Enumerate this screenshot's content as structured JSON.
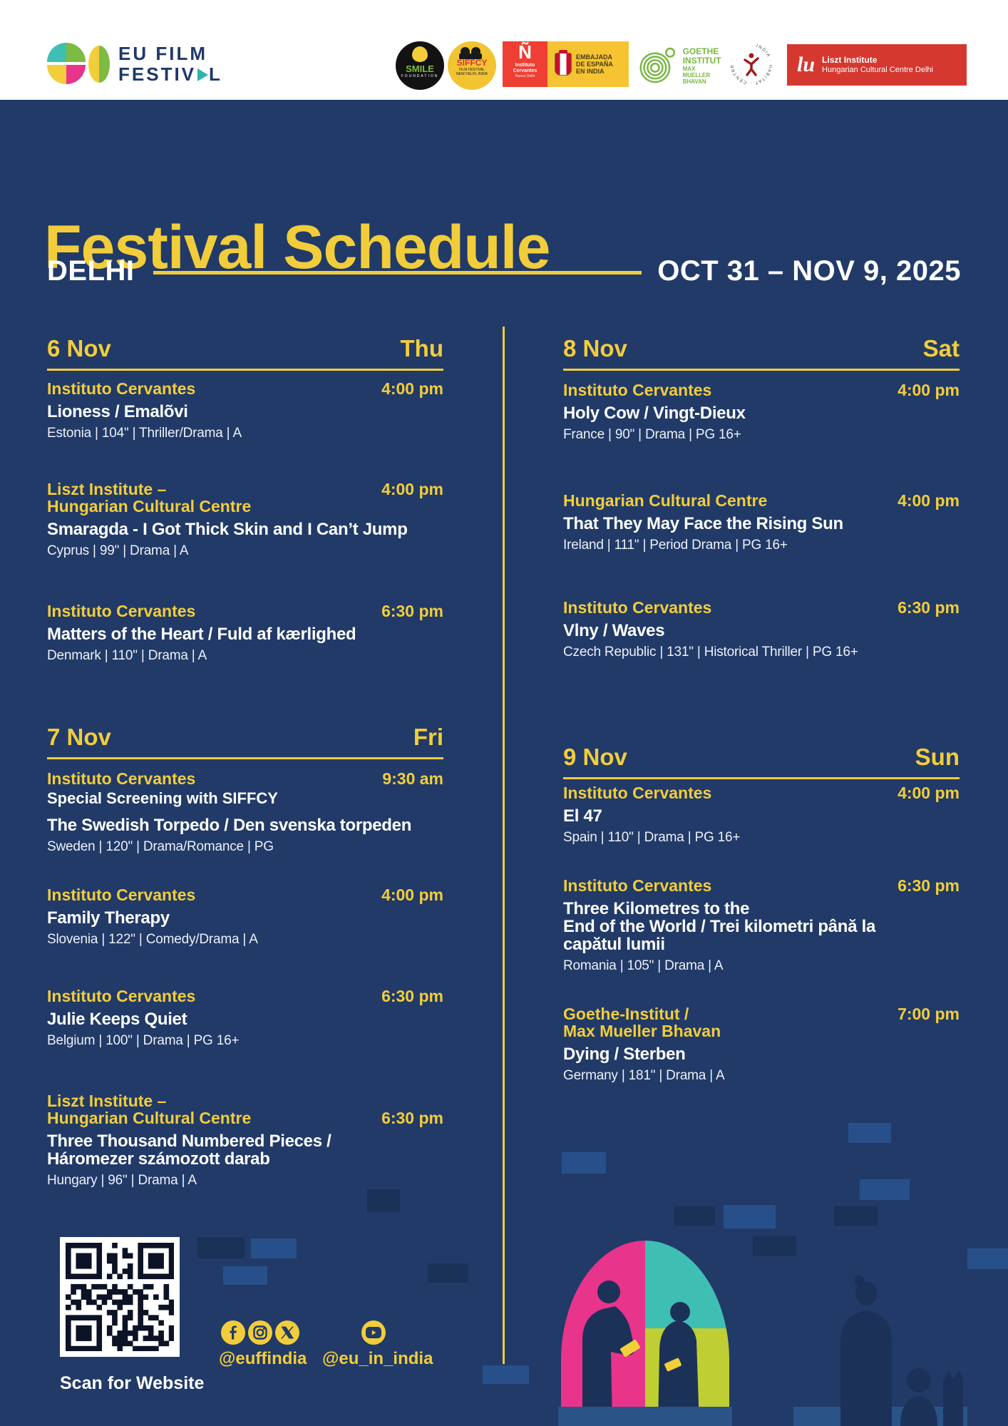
{
  "colors": {
    "background": "#213A68",
    "accent_yellow": "#F2CD3B",
    "white": "#FFFFFF",
    "pink": "#E8348B",
    "teal": "#3FBFB4",
    "lime": "#BFCF33",
    "block_medium": "#27508A",
    "block_dark": "#1A3158",
    "cervantes_red": "#EF3E33",
    "liszt_red": "#D5382F",
    "goethe_green": "#78B843"
  },
  "brand": {
    "line1": "EU FILM",
    "line2_pre": "FESTIV",
    "line2_post": "L"
  },
  "sponsors": {
    "smile": {
      "line1": "SMILE",
      "line2": "FOUNDATION"
    },
    "siffcy": {
      "label": "SIFFCY",
      "sub": "FILM FESTIVAL\nNEW DELHI, INDIA"
    },
    "cervantes": {
      "glyph": "Ñ",
      "line1": "Instituto\nCervantes",
      "line2": "Nueva Delhi"
    },
    "spain": {
      "text": "EMBAJADA\nDE ESPAÑA\nEN INDIA"
    },
    "goethe": {
      "name": "GOETHE\nINSTITUT",
      "sub": "MAX MUELLER\nBHAVAN"
    },
    "habitat": {
      "text": "· INDIA · HABITAT · CENTRE ·"
    },
    "liszt": {
      "glyph": "lu",
      "line1": "Liszt Institute",
      "line2": "Hungarian Cultural Centre Delhi"
    }
  },
  "hero": {
    "title": "Festival Schedule",
    "city": "DELHI",
    "dates": "OCT 31 – NOV 9, 2025"
  },
  "schedule": {
    "left": {
      "sections": [
        {
          "date": "6 Nov",
          "day": "Thu",
          "entries": [
            {
              "venue": "Instituto Cervantes",
              "time": "4:00 pm",
              "title": "Lioness / Emalõvi",
              "meta": "Estonia | 104\" | Thriller/Drama | A"
            },
            {
              "venue": "Liszt Institute –\nHungarian Cultural Centre",
              "time": "4:00 pm",
              "title": "Smaragda - I Got Thick Skin and I Can’t Jump",
              "meta": "Cyprus | 99\" | Drama | A"
            },
            {
              "venue": "Instituto Cervantes",
              "time": "6:30 pm",
              "title": "Matters of the Heart / Fuld af kærlighed",
              "meta": "Denmark | 110\" | Drama | A"
            }
          ]
        },
        {
          "date": "7 Nov",
          "day": "Fri",
          "entries": [
            {
              "venue": "Instituto Cervantes",
              "time": "9:30 am",
              "note": "Special Screening with SIFFCY",
              "title": "The Swedish Torpedo / Den svenska torpeden",
              "meta": "Sweden | 120\" | Drama/Romance | PG"
            },
            {
              "venue": "Instituto Cervantes",
              "time": "4:00 pm",
              "title": "Family Therapy",
              "meta": "Slovenia | 122\" | Comedy/Drama | A"
            },
            {
              "venue": "Instituto Cervantes",
              "time": "6:30 pm",
              "title": "Julie Keeps Quiet",
              "meta": "Belgium | 100\" | Drama | PG 16+"
            },
            {
              "venue": "Liszt Institute –\nHungarian Cultural Centre",
              "time": "6:30 pm",
              "title": "Three Thousand Numbered Pieces /\nHáromezer számozott darab",
              "meta": "Hungary | 96\" | Drama | A"
            }
          ]
        }
      ]
    },
    "right": {
      "sections": [
        {
          "date": "8 Nov",
          "day": "Sat",
          "entries": [
            {
              "venue": "Instituto Cervantes",
              "time": "4:00 pm",
              "title": "Holy Cow / Vingt-Dieux",
              "meta": "France | 90\" | Drama | PG 16+"
            },
            {
              "venue": "Hungarian Cultural Centre",
              "time": "4:00 pm",
              "title": "That They May Face the Rising Sun",
              "meta": "Ireland | 111\" | Period Drama | PG 16+"
            },
            {
              "venue": "Instituto Cervantes",
              "time": "6:30 pm",
              "title": "Vlny / Waves",
              "meta": "Czech Republic | 131\" | Historical Thriller | PG 16+"
            }
          ]
        },
        {
          "date": "9 Nov",
          "day": "Sun",
          "entries": [
            {
              "venue": "Instituto Cervantes",
              "time": "4:00 pm",
              "title": "El 47",
              "meta": "Spain | 110\" | Drama | PG 16+"
            },
            {
              "venue": "Instituto Cervantes",
              "time": "6:30 pm",
              "title": "Three Kilometres to the\nEnd of the World / Trei kilometri până la\ncapătul lumii",
              "meta": "Romania | 105\" | Drama | A"
            },
            {
              "venue": "Goethe-Institut /\nMax Mueller Bhavan",
              "time": "7:00 pm",
              "title": "Dying / Sterben",
              "meta": "Germany | 181\" | Drama | A"
            }
          ]
        }
      ]
    }
  },
  "footer": {
    "qr_label": "Scan for Website",
    "handle_social": "@euffindia",
    "handle_youtube": "@eu_in_india"
  }
}
